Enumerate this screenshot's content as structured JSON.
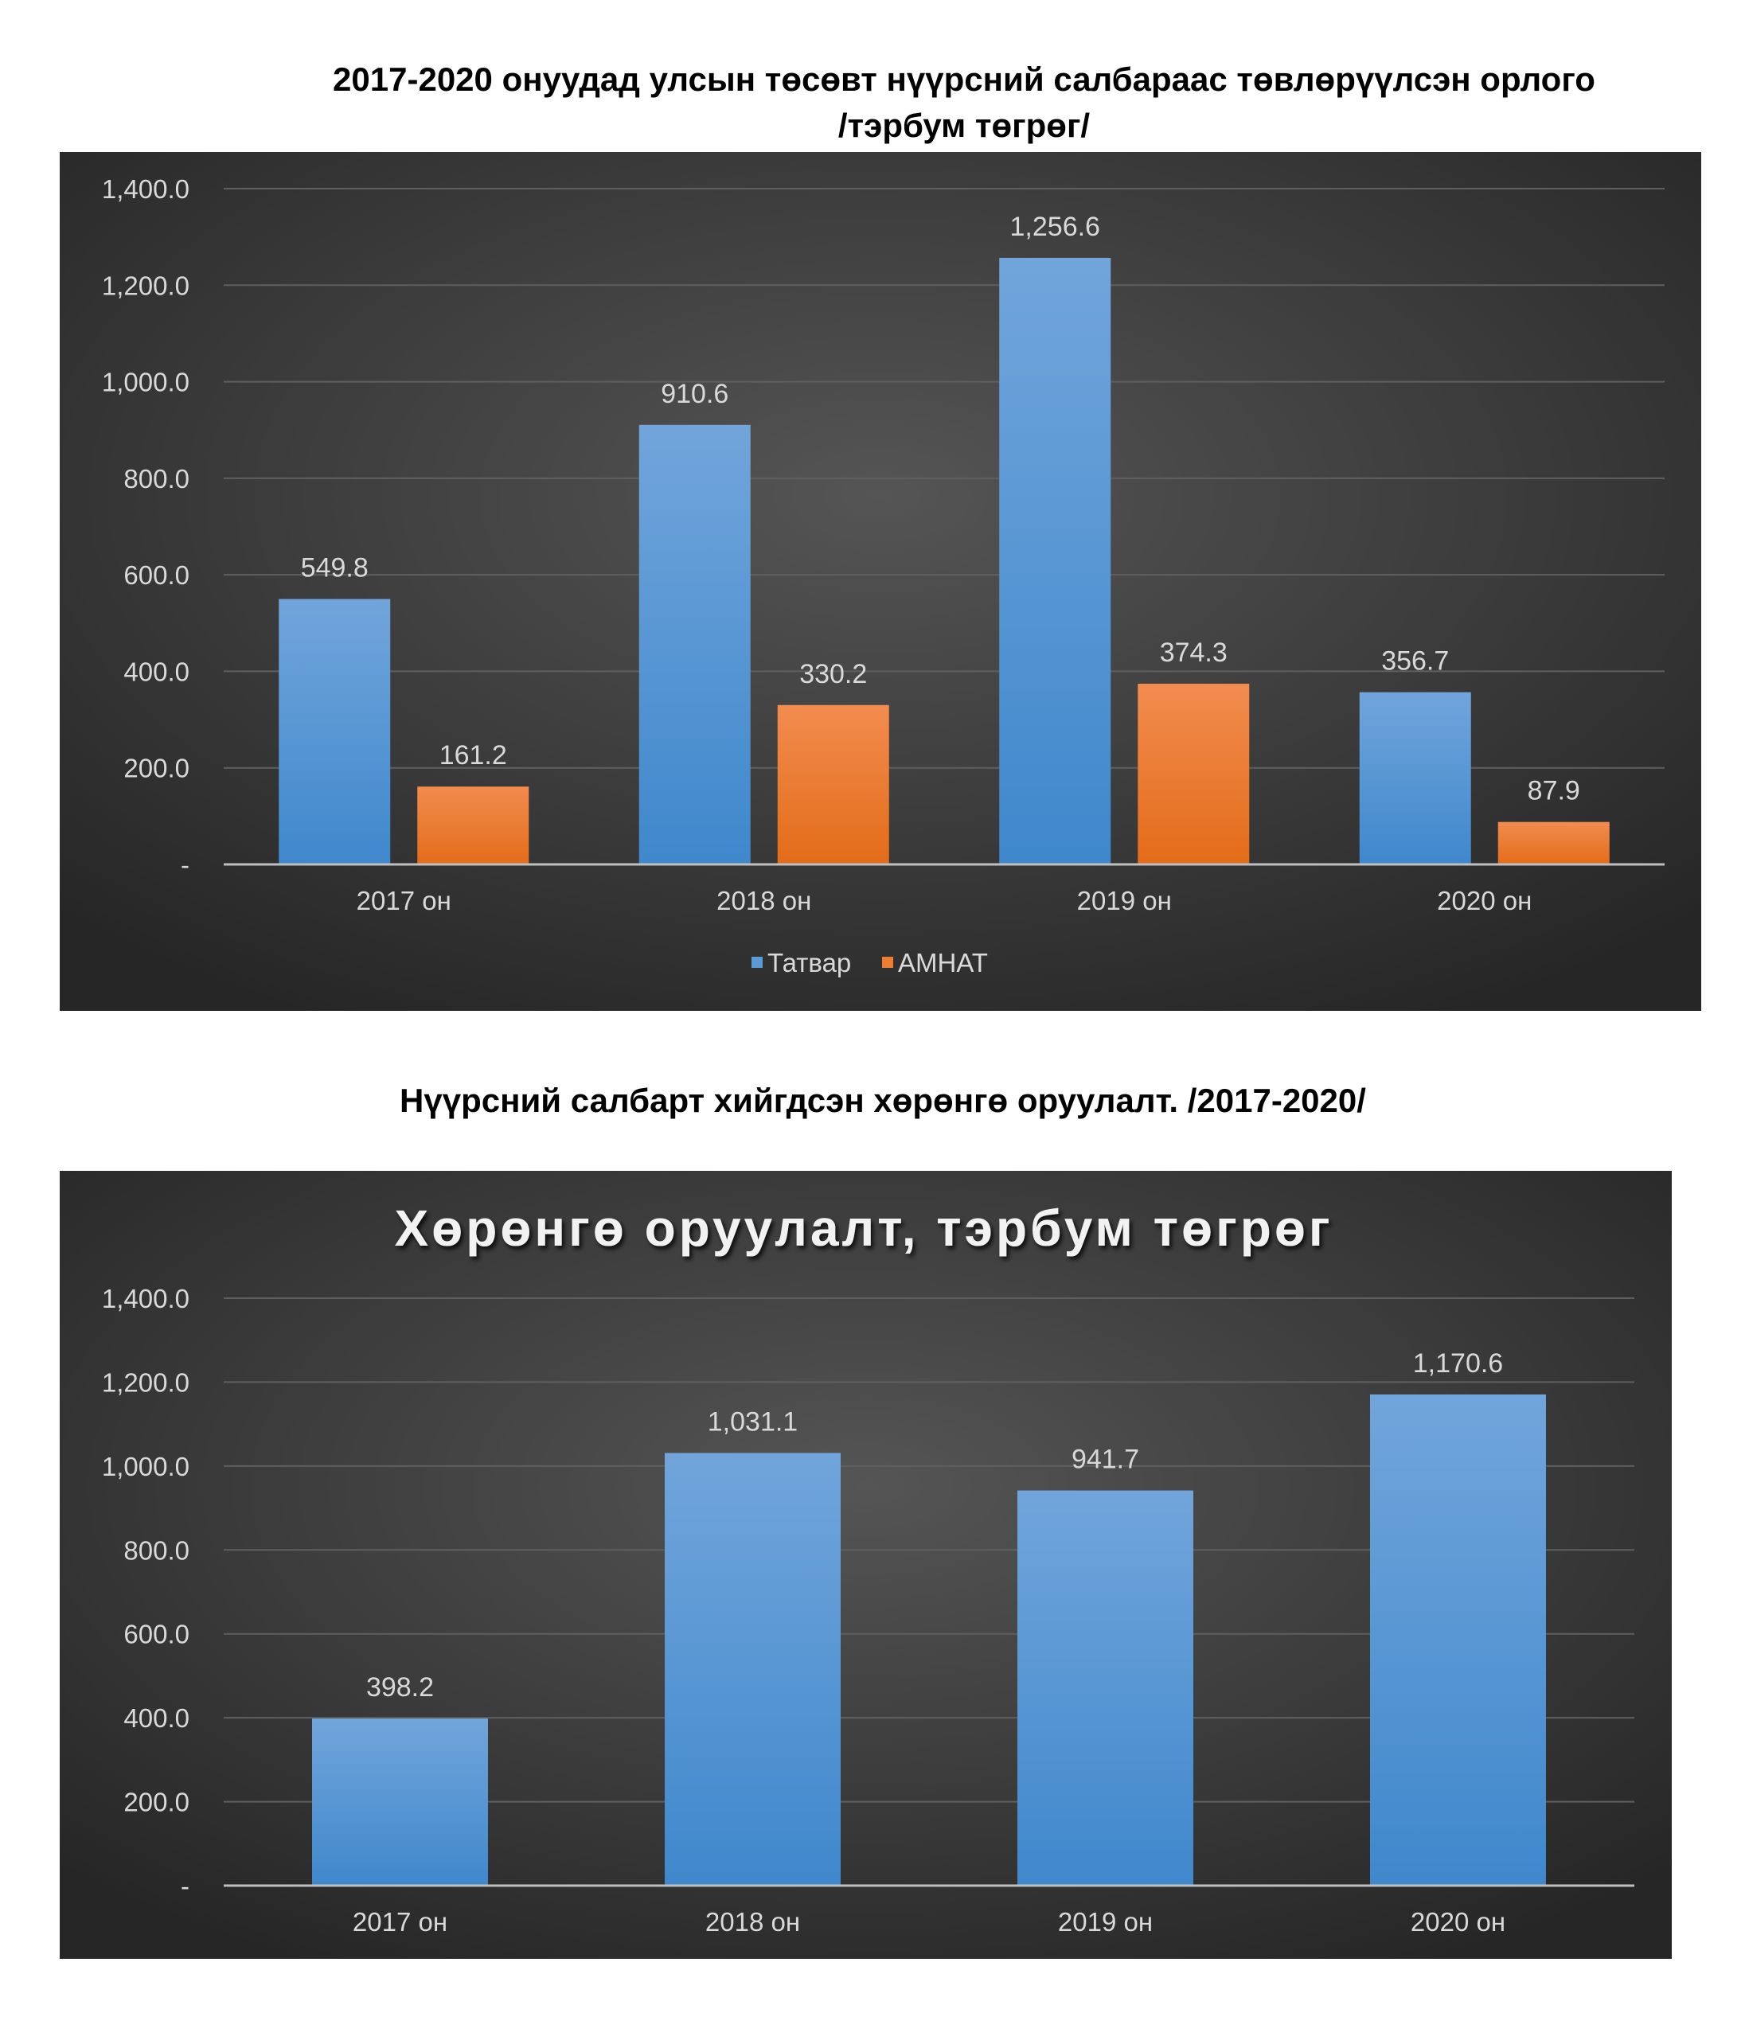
{
  "headings": {
    "chart1_line1": "2017-2020 онуудад улсын төсөвт нүүрсний салбараас төвлөрүүлсэн орлого",
    "chart1_line2": "/тэрбум төгрөг/",
    "chart2": "Нүүрсний салбарт хийгдсэн хөрөнгө оруулалт. /2017-2020/"
  },
  "chart_data": [
    {
      "type": "bar",
      "title": "2017-2020 онуудад улсын төсөвт нүүрсний салбараас төвлөрүүлсэн орлого /тэрбум төгрөг/",
      "categories": [
        "2017 он",
        "2018 он",
        "2019 он",
        "2020 он"
      ],
      "series": [
        {
          "name": "Татвар",
          "color": "#5b9bd5",
          "values": [
            549.8,
            910.6,
            1256.6,
            356.7
          ],
          "labels": [
            "549.8",
            "910.6",
            "1,256.6",
            "356.7"
          ]
        },
        {
          "name": "АМНАТ",
          "color": "#ed7d31",
          "values": [
            161.2,
            330.2,
            374.3,
            87.9
          ],
          "labels": [
            "161.2",
            "330.2",
            "374.3",
            "87.9"
          ]
        }
      ],
      "ylim": [
        0,
        1400
      ],
      "yticks": [
        "-",
        "200.0",
        "400.0",
        "600.0",
        "800.0",
        "1,000.0",
        "1,200.0",
        "1,400.0"
      ],
      "grid": true,
      "legend": "bottom"
    },
    {
      "type": "bar",
      "title": "Хөрөнгө оруулалт, тэрбум төгрөг",
      "categories": [
        "2017 он",
        "2018 он",
        "2019 он",
        "2020 он"
      ],
      "series": [
        {
          "name": "Хөрөнгө оруулалт",
          "color": "#5b9bd5",
          "values": [
            398.2,
            1031.1,
            941.7,
            1170.6
          ],
          "labels": [
            "398.2",
            "1,031.1",
            "941.7",
            "1,170.6"
          ]
        }
      ],
      "ylim": [
        0,
        1400
      ],
      "yticks": [
        "-",
        "200.0",
        "400.0",
        "600.0",
        "800.0",
        "1,000.0",
        "1,200.0",
        "1,400.0"
      ],
      "grid": true,
      "legend": "none"
    }
  ]
}
